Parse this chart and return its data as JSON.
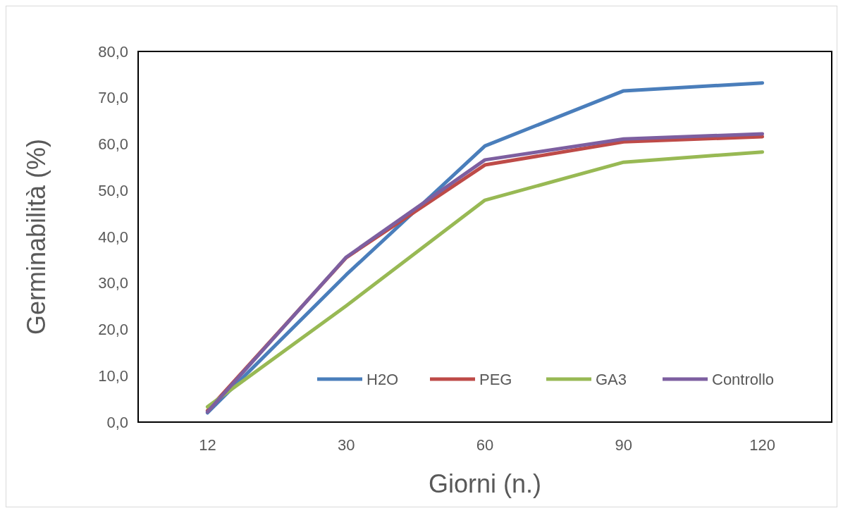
{
  "chart_data": {
    "type": "line",
    "xlabel": "Giorni (n.)",
    "ylabel": "Germinabilità (%)",
    "categories": [
      "12",
      "30",
      "60",
      "90",
      "120"
    ],
    "series": [
      {
        "name": "H2O",
        "color": "#4a7ebb",
        "values": [
          2.0,
          31.8,
          59.6,
          71.5,
          73.2
        ]
      },
      {
        "name": "PEG",
        "color": "#be4b48",
        "values": [
          2.5,
          35.5,
          55.5,
          60.5,
          61.6
        ]
      },
      {
        "name": "GA3",
        "color": "#98b954",
        "values": [
          3.3,
          25.1,
          47.9,
          56.1,
          58.3
        ]
      },
      {
        "name": "Controllo",
        "color": "#7d5fa0",
        "values": [
          2.2,
          35.6,
          56.6,
          61.1,
          62.2
        ]
      }
    ],
    "ylim": [
      0,
      80
    ],
    "yticks": [
      {
        "value": 0,
        "label": "0,0"
      },
      {
        "value": 10,
        "label": "10,0"
      },
      {
        "value": 20,
        "label": "20,0"
      },
      {
        "value": 30,
        "label": "30,0"
      },
      {
        "value": 40,
        "label": "40,0"
      },
      {
        "value": 50,
        "label": "50,0"
      },
      {
        "value": 60,
        "label": "60,0"
      },
      {
        "value": 70,
        "label": "70,0"
      },
      {
        "value": 80,
        "label": "80,0"
      }
    ],
    "legend": "bottom right",
    "marker": "none",
    "line_style": "solid"
  }
}
